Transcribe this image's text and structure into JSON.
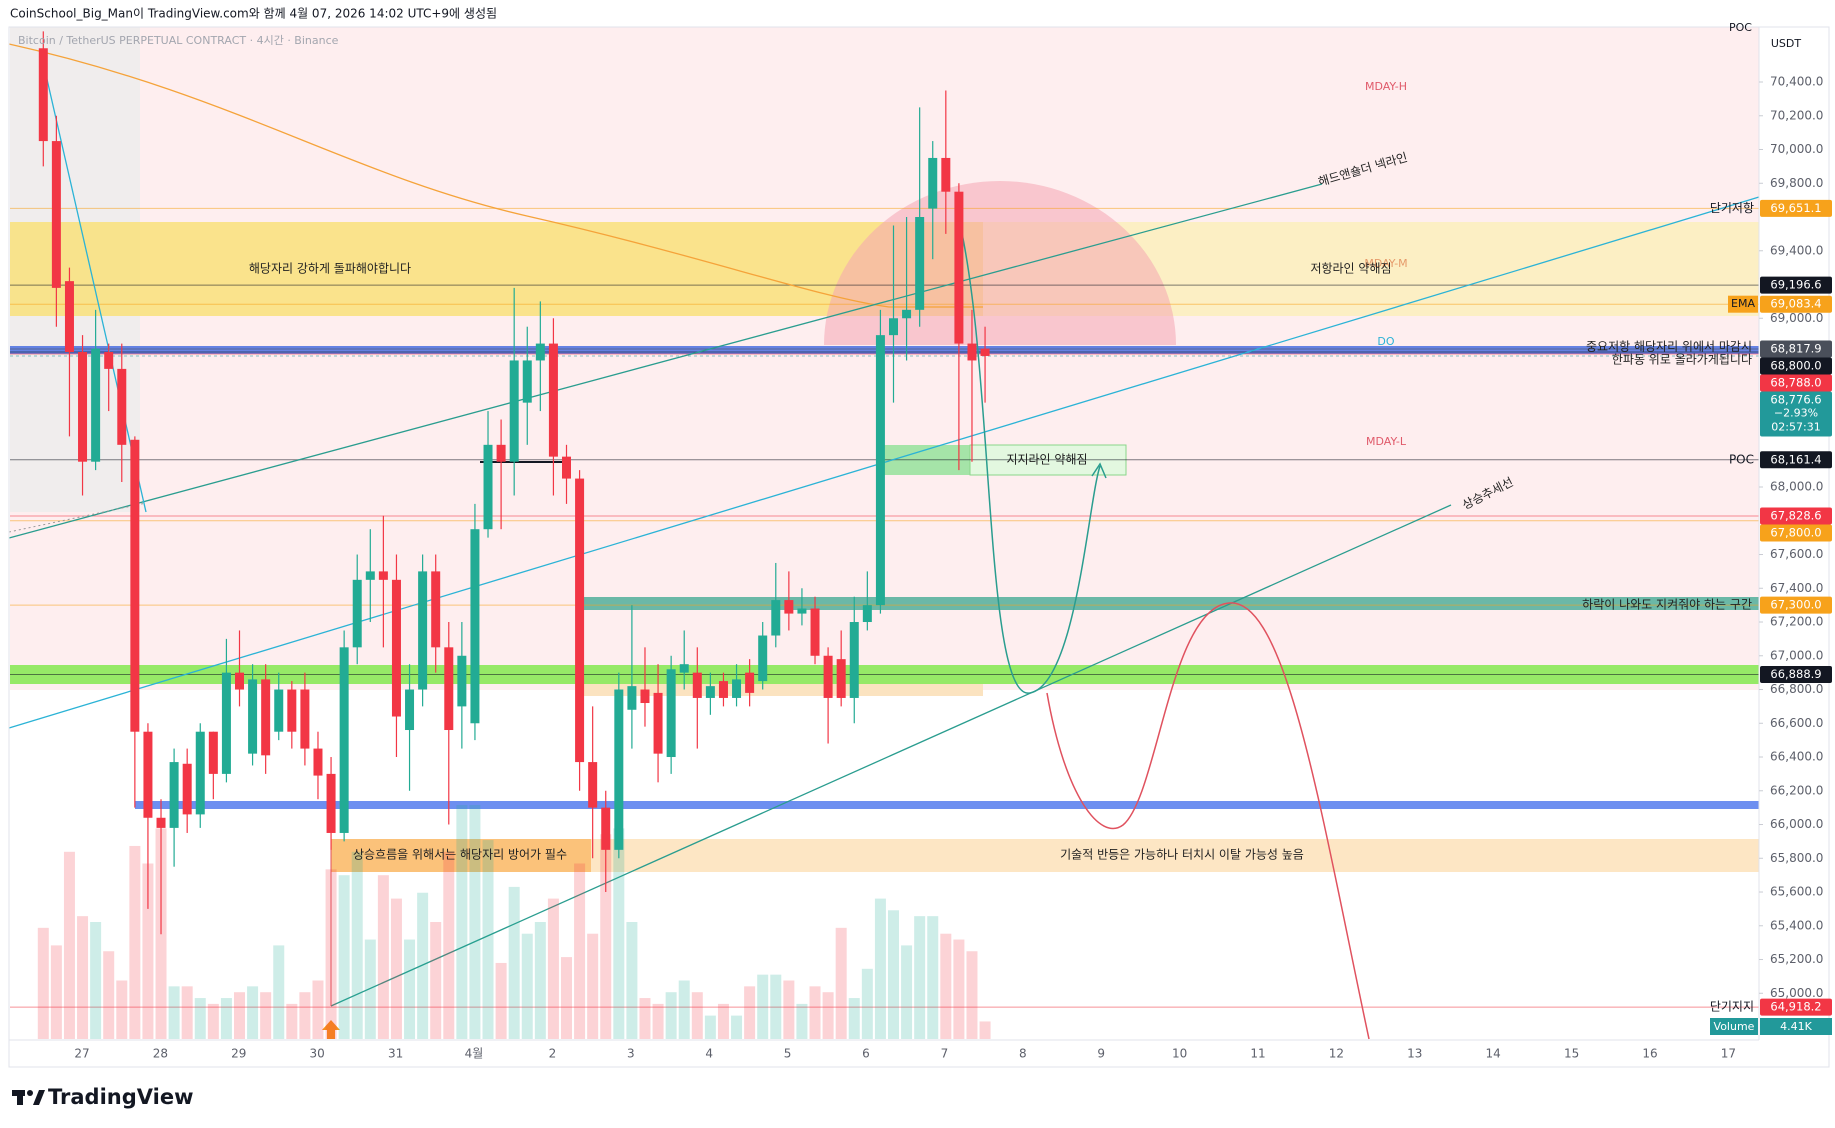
{
  "chart_data": {
    "type": "candlestick",
    "header": "CoinSchool_Big_Man이 TradingView.com와 함께 4월 07, 2026 14:02 UTC+9에 생성됨",
    "symbol": "Bitcoin / TetherUS PERPETUAL CONTRACT · 4시간 · Binance",
    "unit": "USDT",
    "brand": "TradingView",
    "colors": {
      "up": "#22ab94",
      "down": "#f23645"
    },
    "x_labels": [
      "27",
      "28",
      "29",
      "30",
      "31",
      "4월",
      "2",
      "3",
      "4",
      "5",
      "6",
      "7",
      "8",
      "9",
      "10",
      "11",
      "12",
      "13",
      "14",
      "15",
      "16",
      "17"
    ],
    "open": [
      70600,
      70050,
      69220,
      68800,
      68150,
      68800,
      68700,
      68280,
      66550,
      66040,
      65980,
      66360,
      66060,
      66550,
      66300,
      66900,
      66420,
      66860,
      66550,
      66800,
      66800,
      66450,
      66300,
      65950,
      67050,
      67450,
      67500,
      67450,
      66560,
      66800,
      67500,
      67050,
      66700,
      66600,
      67750,
      68250,
      68150,
      68500,
      68750,
      68850,
      68180,
      68050,
      66370,
      66100,
      65850,
      66680,
      66800,
      66780,
      66400,
      66900,
      66900,
      66750,
      66850,
      66750,
      66900,
      66850,
      67120,
      67330,
      67250,
      67280,
      67000,
      66980,
      66750,
      67200,
      67300,
      68900,
      69000,
      69050,
      69650,
      69950,
      69750,
      68850,
      68820
    ],
    "high": [
      70700,
      70200,
      69300,
      68900,
      69050,
      68850,
      68850,
      68300,
      66600,
      66150,
      66450,
      66450,
      66600,
      66550,
      67100,
      67150,
      66950,
      66950,
      66900,
      66850,
      66900,
      66550,
      66400,
      67150,
      67600,
      67750,
      67830,
      67600,
      66950,
      67600,
      67600,
      67200,
      67200,
      67900,
      68450,
      68400,
      69180,
      68950,
      69100,
      69000,
      68250,
      68100,
      66700,
      66200,
      66900,
      67300,
      67050,
      66950,
      67000,
      67150,
      67050,
      66900,
      66900,
      66950,
      66980,
      67200,
      67550,
      67500,
      67400,
      67350,
      67050,
      67150,
      67350,
      67500,
      69050,
      69550,
      69600,
      70250,
      70050,
      70350,
      69800,
      69050,
      68950
    ],
    "low": [
      69900,
      68950,
      68300,
      67950,
      68100,
      68450,
      68030,
      66100,
      65500,
      65350,
      65750,
      65950,
      65980,
      66150,
      66250,
      66700,
      66350,
      66300,
      66500,
      66450,
      66350,
      66150,
      65850,
      65900,
      66950,
      67200,
      67050,
      66400,
      66200,
      66700,
      66900,
      66000,
      66450,
      66500,
      67700,
      67750,
      67950,
      68250,
      68450,
      67950,
      67900,
      66200,
      65800,
      65600,
      65800,
      66450,
      66580,
      66250,
      66300,
      66800,
      66450,
      66650,
      66700,
      66700,
      66700,
      66800,
      67050,
      67150,
      67180,
      66950,
      66480,
      66700,
      66600,
      67150,
      67250,
      68500,
      68750,
      68950,
      69350,
      69500,
      68100,
      68150,
      68500
    ],
    "close": [
      70050,
      69180,
      68800,
      68150,
      68820,
      68700,
      68250,
      66550,
      66040,
      65980,
      66370,
      66060,
      66550,
      66300,
      66900,
      66800,
      66860,
      66410,
      66800,
      66550,
      66450,
      66290,
      65950,
      67050,
      67450,
      67500,
      67450,
      66640,
      66800,
      67500,
      67050,
      66560,
      67000,
      67750,
      68250,
      68150,
      68750,
      68750,
      68850,
      68180,
      68050,
      66370,
      66100,
      65850,
      66800,
      66820,
      66720,
      66420,
      66920,
      66950,
      66750,
      66820,
      66750,
      66860,
      66780,
      67120,
      67330,
      67250,
      67280,
      67000,
      66750,
      66750,
      67200,
      67300,
      68900,
      69000,
      69050,
      69600,
      69950,
      69750,
      68850,
      68750,
      68776.6
    ],
    "volume": {
      "name": "Volume",
      "last_label": "4.41K",
      "values": [
        27930,
        23520,
        47040,
        30870,
        29400,
        22050,
        14700,
        48510,
        44100,
        52920,
        13230,
        13230,
        10290,
        8820,
        10290,
        11760,
        13230,
        11760,
        23520,
        8820,
        11760,
        14700,
        42630,
        41160,
        47040,
        24990,
        41160,
        35280,
        24990,
        36750,
        29400,
        47040,
        58800,
        58800,
        49980,
        19110,
        38220,
        26460,
        29400,
        35280,
        20580,
        44100,
        26460,
        51450,
        52920,
        29400,
        10290,
        8820,
        11760,
        14700,
        11760,
        5880,
        8820,
        5880,
        13230,
        16170,
        16170,
        14700,
        8820,
        13230,
        11760,
        27930,
        10290,
        17640,
        35280,
        32340,
        23520,
        30870,
        30870,
        26460,
        24990,
        22050,
        4410
      ]
    },
    "ylim": [
      64729,
      70726
    ],
    "yticks": [
      {
        "value": 65000,
        "label": "65,000.0"
      },
      {
        "value": 65200,
        "label": "65,200.0"
      },
      {
        "value": 65400,
        "label": "65,400.0"
      },
      {
        "value": 65600,
        "label": "65,600.0"
      },
      {
        "value": 65800,
        "label": "65,800.0"
      },
      {
        "value": 66000,
        "label": "66,000.0"
      },
      {
        "value": 66200,
        "label": "66,200.0"
      },
      {
        "value": 66400,
        "label": "66,400.0"
      },
      {
        "value": 66600,
        "label": "66,600.0"
      },
      {
        "value": 66800,
        "label": "66,800.0"
      },
      {
        "value": 67000,
        "label": "67,000.0"
      },
      {
        "value": 67200,
        "label": "67,200.0"
      },
      {
        "value": 67400,
        "label": "67,400.0"
      },
      {
        "value": 67600,
        "label": "67,600.0"
      },
      {
        "value": 68000,
        "label": "68,000.0"
      },
      {
        "value": 69000,
        "label": "69,000.0"
      },
      {
        "value": 69400,
        "label": "69,400.0"
      },
      {
        "value": 69800,
        "label": "69,800.0"
      },
      {
        "value": 70000,
        "label": "70,000.0"
      },
      {
        "value": 70200,
        "label": "70,200.0"
      },
      {
        "value": 70400,
        "label": "70,400.0"
      }
    ],
    "levels": [
      {
        "value": 69651.1,
        "label": "69,651.1",
        "color": "#f7a21b",
        "name": "단기저항"
      },
      {
        "value": 69196.6,
        "label": "69,196.6",
        "color": "#131722"
      },
      {
        "value": 69083.4,
        "label": "69,083.4",
        "color": "#f7a21b",
        "name": "EMA"
      },
      {
        "value": 68817.9,
        "label": "68,817.9",
        "color": "#4a4f5a"
      },
      {
        "value": 68800,
        "label": "68,800.0",
        "color": "#131722"
      },
      {
        "value": 68788,
        "label": "68,788.0",
        "color": "#f23645"
      },
      {
        "value": 68776.6,
        "label": "68,776.6",
        "color": "#22999a",
        "change": -2.93,
        "change_label": "−2.93%",
        "countdown": "02:57:31"
      },
      {
        "value": 68161.4,
        "label": "68,161.4",
        "color": "#131722",
        "name": "POC"
      },
      {
        "value": 67828.6,
        "label": "67,828.6",
        "color": "#f23645"
      },
      {
        "value": 67800,
        "label": "67,800.0",
        "color": "#f7a21b"
      },
      {
        "value": 67300,
        "label": "67,300.0",
        "color": "#f7a21b"
      },
      {
        "value": 66888.9,
        "label": "66,888.9",
        "color": "#131722"
      },
      {
        "value": 64918.2,
        "label": "64,918.2",
        "color": "#f23645",
        "name": "단기지지"
      }
    ],
    "annotations": {
      "mday_h": "MDAY-H",
      "mday_m": "MDAY-M",
      "mday_l": "MDAY-L",
      "do": "DO",
      "poc_top": "POC",
      "neckline": "해드앤숄더 넥라인",
      "breakout": "해당자리 강하게 돌파해야합니다",
      "resistance_weak": "저항라인 약해짐",
      "key_resistance_1": "중요저항 해당자리 위에서 마감시",
      "key_resistance_2": "한파동 위로 올라가게됩니다",
      "support_weak": "지지라인 약해짐",
      "uptrend": "상승추세선",
      "must_hold": "하락이 나와도 지켜줘야 하는 구간",
      "defend": "상승흐름을 위해서는 해당자리 방어가 필수",
      "rebound": "기술적 반등은 가능하나 터치시 이탈 가능성 높음"
    }
  }
}
